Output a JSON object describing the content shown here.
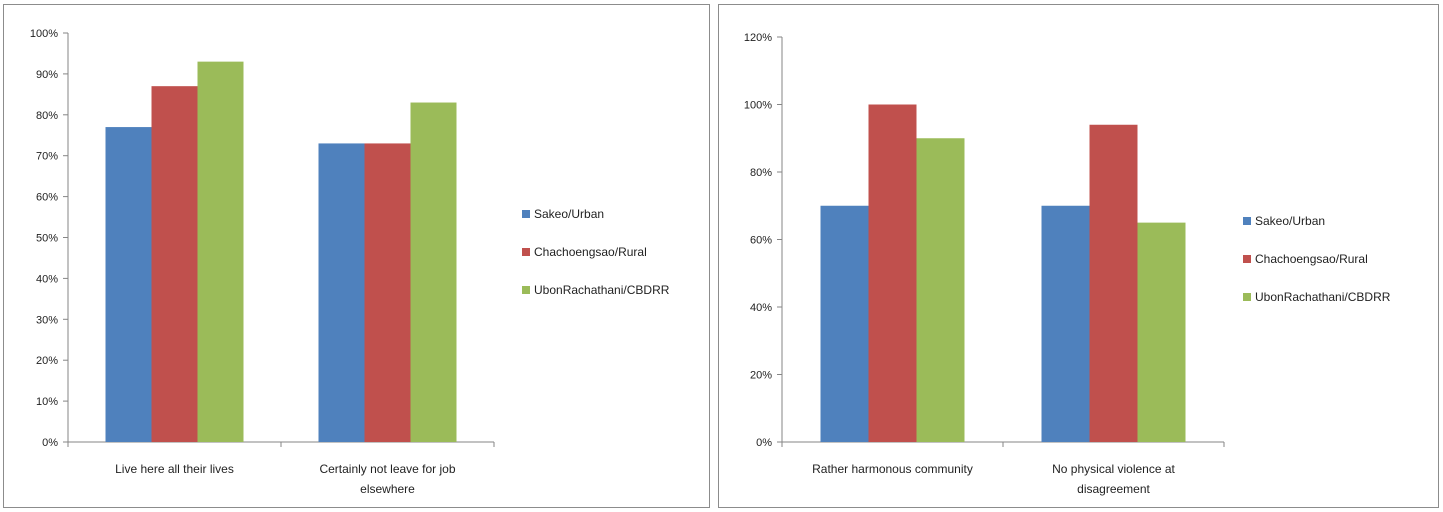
{
  "chart_data": [
    {
      "type": "bar",
      "categories": [
        [
          "Live here all their lives"
        ],
        [
          "Certainly not leave for job",
          "elsewhere"
        ]
      ],
      "series": [
        {
          "name": "Sakeo/Urban",
          "values": [
            77,
            73
          ],
          "color": "#4f81bd"
        },
        {
          "name": "Chachoengsao/Rural",
          "values": [
            87,
            73
          ],
          "color": "#c0504d"
        },
        {
          "name": "UbonRachathani/CBDRR",
          "values": [
            93,
            83
          ],
          "color": "#9bbb59"
        }
      ],
      "title": "",
      "xlabel": "",
      "ylabel": "",
      "ylim": [
        0,
        100
      ],
      "yticks": [
        0,
        10,
        20,
        30,
        40,
        50,
        60,
        70,
        80,
        90,
        100
      ],
      "ytick_labels": [
        "0%",
        "10%",
        "20%",
        "30%",
        "40%",
        "50%",
        "60%",
        "70%",
        "80%",
        "90%",
        "100%"
      ],
      "grid": false,
      "legend_position": "right"
    },
    {
      "type": "bar",
      "categories": [
        [
          "Rather harmonous community"
        ],
        [
          "No physical violence at",
          "disagreement"
        ]
      ],
      "series": [
        {
          "name": "Sakeo/Urban",
          "values": [
            70,
            70
          ],
          "color": "#4f81bd"
        },
        {
          "name": "Chachoengsao/Rural",
          "values": [
            100,
            94
          ],
          "color": "#c0504d"
        },
        {
          "name": "UbonRachathani/CBDRR",
          "values": [
            90,
            65
          ],
          "color": "#9bbb59"
        }
      ],
      "title": "",
      "xlabel": "",
      "ylabel": "",
      "ylim": [
        0,
        120
      ],
      "yticks": [
        0,
        20,
        40,
        60,
        80,
        100,
        120
      ],
      "ytick_labels": [
        "0%",
        "20%",
        "40%",
        "60%",
        "80%",
        "100%",
        "120%"
      ],
      "grid": false,
      "legend_position": "right"
    }
  ]
}
